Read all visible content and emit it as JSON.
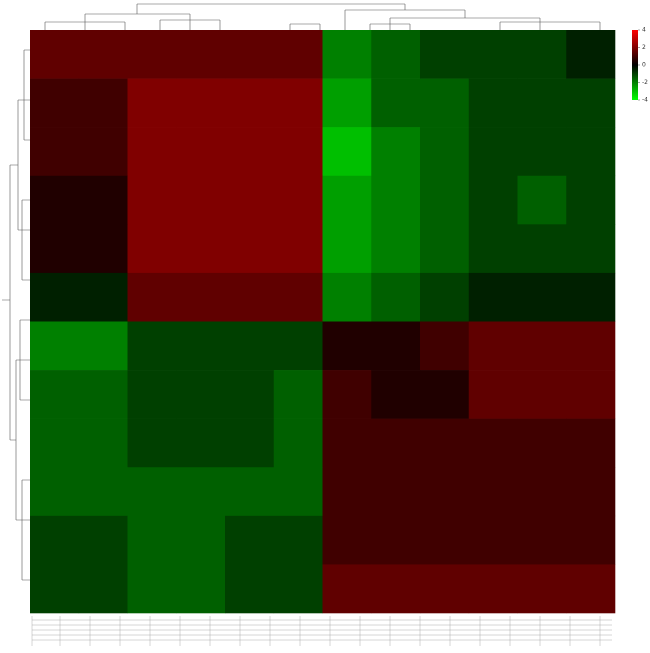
{
  "chart_data": {
    "type": "heatmap",
    "values": [
      [
        1.5,
        1.5,
        1.5,
        1.5,
        1.5,
        1.5,
        -2,
        -1.5,
        -1,
        -1,
        -1,
        -0.5
      ],
      [
        1,
        1,
        2,
        2,
        2,
        2,
        -2.5,
        -1.5,
        -1.5,
        -1,
        -1,
        -1
      ],
      [
        1,
        1,
        2,
        2,
        2,
        2,
        -3,
        -2,
        -1.5,
        -1,
        -1,
        -1
      ],
      [
        0.5,
        0.5,
        2,
        2,
        2,
        2,
        -2.5,
        -2,
        -1.5,
        -1,
        -1.5,
        -1
      ],
      [
        0.5,
        0.5,
        2,
        2,
        2,
        2,
        -2.5,
        -2,
        -1.5,
        -1,
        -1,
        -1
      ],
      [
        -0.5,
        -0.5,
        1.5,
        1.5,
        1.5,
        1.5,
        -2,
        -1.5,
        -1,
        -0.5,
        -0.5,
        -0.5
      ],
      [
        -2,
        -2,
        -1,
        -1,
        -1,
        -1,
        0.5,
        0.5,
        1,
        1.5,
        1.5,
        1.5
      ],
      [
        -1.5,
        -1.5,
        -1,
        -1,
        -1,
        -1.5,
        1,
        0.5,
        0.5,
        1.5,
        1.5,
        1.5
      ],
      [
        -1.5,
        -1.5,
        -1,
        -1,
        -1,
        -1.5,
        1,
        1,
        1,
        1,
        1,
        1
      ],
      [
        -1.5,
        -1.5,
        -1.5,
        -1.5,
        -1.5,
        -1.5,
        1,
        1,
        1,
        1,
        1,
        1
      ],
      [
        -1,
        -1,
        -1.5,
        -1.5,
        -1,
        -1,
        1,
        1,
        1,
        1,
        1,
        1
      ],
      [
        -1,
        -1,
        -1.5,
        -1.5,
        -1,
        -1,
        1.5,
        1.5,
        1.5,
        1.5,
        1.5,
        1.5
      ]
    ],
    "colors": [
      "#00ff00",
      "#000000",
      "#ff0000"
    ],
    "zlim": [
      -4,
      4
    ],
    "zticks": [
      4,
      2,
      0,
      -2,
      -4
    ]
  }
}
